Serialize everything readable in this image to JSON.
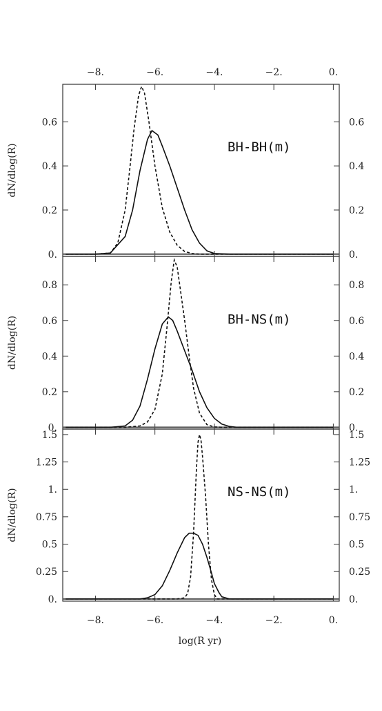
{
  "chart_data": {
    "type": "line",
    "shared_x": {
      "label": "log(R yr)",
      "lim": [
        -9.1,
        0.2
      ],
      "ticks": [
        -8,
        -6,
        -4,
        -2,
        0
      ],
      "tick_labels": [
        "−8.",
        "−6.",
        "−4.",
        "−2.",
        "0."
      ]
    },
    "panels": [
      {
        "label": "BH-BH(m)",
        "ylabel": "dN/dlog(R)",
        "ylim": [
          -0.01,
          0.77
        ],
        "yticks": [
          0,
          0.2,
          0.4,
          0.6
        ],
        "ytick_labels": [
          "0.",
          "0.2",
          "0.4",
          "0.6"
        ],
        "series": [
          {
            "style": "solid",
            "x": [
              -9.0,
              -8.0,
              -7.5,
              -7.0,
              -6.75,
              -6.5,
              -6.25,
              -6.1,
              -5.9,
              -5.75,
              -5.5,
              -5.25,
              -5.0,
              -4.75,
              -4.5,
              -4.25,
              -4.0,
              -3.5,
              -2.0,
              0.0
            ],
            "y": [
              0.0,
              0.0,
              0.005,
              0.08,
              0.2,
              0.38,
              0.52,
              0.56,
              0.54,
              0.49,
              0.4,
              0.3,
              0.2,
              0.11,
              0.05,
              0.015,
              0.003,
              0.0,
              0.0,
              0.0
            ]
          },
          {
            "style": "dashed",
            "x": [
              -9.0,
              -8.0,
              -7.5,
              -7.25,
              -7.0,
              -6.85,
              -6.7,
              -6.55,
              -6.45,
              -6.35,
              -6.2,
              -6.0,
              -5.75,
              -5.5,
              -5.25,
              -5.0,
              -4.75,
              -4.5,
              -4.0,
              -2.0,
              0.0
            ],
            "y": [
              0.0,
              0.0,
              0.005,
              0.05,
              0.2,
              0.38,
              0.57,
              0.72,
              0.76,
              0.73,
              0.6,
              0.4,
              0.21,
              0.1,
              0.04,
              0.012,
              0.003,
              0.0,
              0.0,
              0.0,
              0.0
            ]
          }
        ]
      },
      {
        "label": "BH-NS(m)",
        "ylabel": "dN/dlog(R)",
        "ylim": [
          -0.01,
          0.96
        ],
        "yticks": [
          0,
          0.2,
          0.4,
          0.6,
          0.8
        ],
        "ytick_labels": [
          "0.",
          "0.2",
          "0.4",
          "0.6",
          "0.8"
        ],
        "series": [
          {
            "style": "solid",
            "x": [
              -9.0,
              -7.5,
              -7.0,
              -6.75,
              -6.5,
              -6.25,
              -6.0,
              -5.75,
              -5.55,
              -5.4,
              -5.25,
              -5.0,
              -4.75,
              -4.5,
              -4.25,
              -4.0,
              -3.75,
              -3.5,
              -3.25,
              -2.0,
              0.0
            ],
            "y": [
              0.0,
              0.0,
              0.008,
              0.04,
              0.12,
              0.27,
              0.44,
              0.58,
              0.62,
              0.6,
              0.54,
              0.43,
              0.32,
              0.2,
              0.11,
              0.05,
              0.018,
              0.005,
              0.0,
              0.0,
              0.0
            ]
          },
          {
            "style": "dashed",
            "x": [
              -9.0,
              -7.0,
              -6.5,
              -6.25,
              -6.0,
              -5.75,
              -5.6,
              -5.45,
              -5.35,
              -5.25,
              -5.1,
              -5.0,
              -4.85,
              -4.7,
              -4.5,
              -4.25,
              -4.0,
              -3.75,
              -2.0,
              0.0
            ],
            "y": [
              0.0,
              0.0,
              0.008,
              0.03,
              0.1,
              0.3,
              0.55,
              0.82,
              0.94,
              0.9,
              0.72,
              0.6,
              0.4,
              0.22,
              0.08,
              0.015,
              0.002,
              0.0,
              0.0,
              0.0
            ]
          }
        ]
      },
      {
        "label": "NS-NS(m)",
        "ylabel": "dN/dlog(R)",
        "ylim": [
          -0.02,
          1.55
        ],
        "yticks": [
          0,
          0.25,
          0.5,
          0.75,
          1,
          1.25,
          1.5
        ],
        "ytick_labels": [
          "0.",
          "0.25",
          "0.5",
          "0.75",
          "1.",
          "1.25",
          "1.5"
        ],
        "series": [
          {
            "style": "solid",
            "x": [
              -9.0,
              -6.5,
              -6.25,
              -6.0,
              -5.75,
              -5.5,
              -5.25,
              -5.0,
              -4.85,
              -4.7,
              -4.55,
              -4.4,
              -4.25,
              -4.1,
              -4.0,
              -3.85,
              -3.75,
              -3.5,
              -2.0,
              0.0
            ],
            "y": [
              0.0,
              0.0,
              0.01,
              0.04,
              0.12,
              0.26,
              0.42,
              0.56,
              0.6,
              0.6,
              0.58,
              0.5,
              0.38,
              0.24,
              0.14,
              0.06,
              0.02,
              0.0,
              0.0,
              0.0
            ]
          },
          {
            "style": "dashed",
            "x": [
              -9.0,
              -5.25,
              -5.0,
              -4.9,
              -4.8,
              -4.7,
              -4.6,
              -4.55,
              -4.5,
              -4.45,
              -4.4,
              -4.3,
              -4.2,
              -4.1,
              -4.0,
              -3.9,
              -2.0,
              0.0
            ],
            "y": [
              0.0,
              0.0,
              0.01,
              0.05,
              0.2,
              0.6,
              1.2,
              1.43,
              1.5,
              1.45,
              1.3,
              0.95,
              0.5,
              0.18,
              0.04,
              0.0,
              0.0,
              0.0
            ]
          }
        ]
      }
    ]
  }
}
